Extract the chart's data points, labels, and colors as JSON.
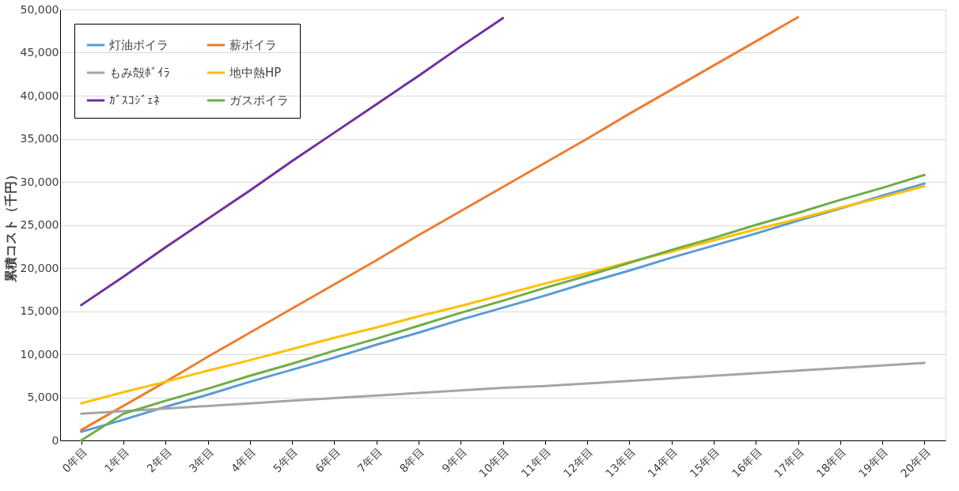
{
  "chart_data": {
    "type": "line",
    "ylabel": "累積コスト（千円）",
    "categories": [
      "0年目",
      "1年目",
      "2年目",
      "3年目",
      "4年目",
      "5年目",
      "6年目",
      "7年目",
      "8年目",
      "9年目",
      "10年目",
      "11年目",
      "12年目",
      "13年目",
      "14年目",
      "15年目",
      "16年目",
      "17年目",
      "18年目",
      "19年目",
      "20年目"
    ],
    "series": [
      {
        "name": "灯油ボイラ",
        "color": "#5b9bd5",
        "values": [
          1000,
          2400,
          3900,
          5300,
          6800,
          8200,
          9600,
          11100,
          12500,
          14000,
          15400,
          16800,
          18300,
          19700,
          21200,
          22600,
          24000,
          25500,
          26900,
          28400,
          29800
        ]
      },
      {
        "name": "薪ボイラ",
        "color": "#ed7d31",
        "values": [
          1200,
          4000,
          6800,
          9700,
          12500,
          15300,
          18100,
          20900,
          23800,
          26600,
          29400,
          32200,
          35000,
          37900,
          40700,
          43500,
          46300,
          49100,
          null,
          null,
          null
        ]
      },
      {
        "name": "もみ殻ﾎﾞｲﾗ",
        "color": "#a5a5a5",
        "values": [
          3100,
          3400,
          3700,
          4000,
          4300,
          4600,
          4900,
          5200,
          5500,
          5800,
          6100,
          6300,
          6600,
          6900,
          7200,
          7500,
          7800,
          8100,
          8400,
          8700,
          9000
        ]
      },
      {
        "name": "地中熱HP",
        "color": "#ffc000",
        "values": [
          4300,
          5600,
          6800,
          8100,
          9300,
          10600,
          11900,
          13100,
          14400,
          15600,
          16900,
          18200,
          19400,
          20700,
          21900,
          23200,
          24500,
          25700,
          27000,
          28200,
          29500
        ]
      },
      {
        "name": "ｶﾞｽｺｼﾞｪﾈ",
        "color": "#7030a0",
        "values": [
          15700,
          19000,
          22400,
          25700,
          29000,
          32400,
          35700,
          39000,
          42300,
          45700,
          49000,
          null,
          null,
          null,
          null,
          null,
          null,
          null,
          null,
          null,
          null
        ]
      },
      {
        "name": "ガスボイラ",
        "color": "#70ad47",
        "values": [
          0,
          3100,
          4600,
          6000,
          7500,
          8900,
          10400,
          11800,
          13300,
          14800,
          16200,
          17700,
          19100,
          20600,
          22100,
          23500,
          25000,
          26400,
          27900,
          29300,
          30800
        ]
      }
    ],
    "ylim": [
      0,
      50000
    ],
    "yticks": [
      0,
      {
        "value": 5000,
        "label": "5,000"
      },
      {
        "value": 10000,
        "label": "10,000"
      },
      {
        "value": 15000,
        "label": "15,000"
      },
      {
        "value": 20000,
        "label": "20,000"
      },
      {
        "value": 25000,
        "label": "25,000"
      },
      {
        "value": 30000,
        "label": "30,000"
      },
      {
        "value": 35000,
        "label": "35,000"
      },
      {
        "value": 40000,
        "label": "40,000"
      },
      {
        "value": 45000,
        "label": "45,000"
      },
      {
        "value": 50000,
        "label": "50,000"
      }
    ],
    "grid": "y",
    "legend": "top left",
    "marker": "none",
    "line_style": "solid"
  }
}
